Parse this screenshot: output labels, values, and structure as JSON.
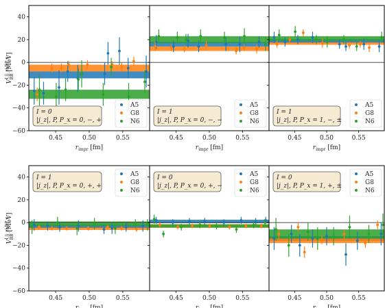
{
  "figure": {
    "ylabel_rows": [
      "V_BB^{I,|j_z|,P,P_x} [MeV]",
      "V_BB^{I,|j_z|,P,P_x} [MeV]"
    ],
    "xlabel": "r_impr [fm]"
  },
  "legend_entries": [
    {
      "name": "A5",
      "color": "#1f77b4"
    },
    {
      "name": "G8",
      "color": "#ff7f0e"
    },
    {
      "name": "N6",
      "color": "#2ca02c"
    }
  ],
  "chart_data": [
    {
      "type": "scatter",
      "row": 0,
      "col": 0,
      "box_lines": [
        "I = 0",
        "|j_z|, P, P_x = 0, −, +"
      ],
      "xlim": [
        0.41,
        0.59
      ],
      "ylim": [
        -60,
        50
      ],
      "xticks": [
        "0.45",
        "0.50",
        "0.55"
      ],
      "yticks": [
        "−60",
        "−40",
        "−20",
        "0",
        "20",
        "40"
      ],
      "bands": [
        {
          "series": "G8",
          "y": -5,
          "half": 3
        },
        {
          "series": "A5",
          "y": -11,
          "half": 3
        },
        {
          "series": "N6",
          "y": -28,
          "half": 4
        }
      ],
      "series": [
        {
          "name": "A5",
          "x": [
            0.418,
            0.432,
            0.455,
            0.468,
            0.483,
            0.523,
            0.528,
            0.545,
            0.558,
            0.585
          ],
          "y": [
            -25,
            -27,
            -22,
            -8,
            -14,
            -10,
            8,
            10,
            -5,
            -8
          ],
          "err": [
            12,
            10,
            15,
            9,
            12,
            10,
            10,
            12,
            9,
            14
          ]
        },
        {
          "name": "G8",
          "x": [
            0.422,
            0.444,
            0.458,
            0.469,
            0.497,
            0.534,
            0.548,
            0.566
          ],
          "y": [
            -28,
            -5,
            -5,
            -2,
            -2,
            -2,
            -4,
            1
          ],
          "err": [
            6,
            4,
            4,
            3,
            4,
            3,
            4,
            4
          ]
        },
        {
          "name": "N6",
          "x": [
            0.425,
            0.45,
            0.464,
            0.483,
            0.488,
            0.52,
            0.532,
            0.558,
            0.582
          ],
          "y": [
            -24,
            -30,
            -24,
            -15,
            -10,
            -28,
            -4,
            -30,
            -17
          ],
          "err": [
            14,
            12,
            10,
            10,
            12,
            10,
            8,
            12,
            10
          ]
        }
      ]
    },
    {
      "type": "scatter",
      "row": 0,
      "col": 1,
      "box_lines": [
        "I = 1",
        "|j_z|, P, P_x = 0, −, −"
      ],
      "xlim": [
        0.41,
        0.59
      ],
      "ylim": [
        -60,
        50
      ],
      "xticks": [
        "0.45",
        "0.50",
        "0.55"
      ],
      "yticks": [
        "−60",
        "−40",
        "−20",
        "0",
        "20",
        "40"
      ],
      "bands": [
        {
          "series": "G8",
          "y": 12,
          "half": 2
        },
        {
          "series": "A5",
          "y": 16,
          "half": 2
        },
        {
          "series": "N6",
          "y": 20,
          "half": 3
        }
      ],
      "series": [
        {
          "name": "A5",
          "x": [
            0.42,
            0.446,
            0.468,
            0.484,
            0.525,
            0.546,
            0.575
          ],
          "y": [
            18,
            14,
            19,
            14,
            16,
            16,
            18
          ],
          "err": [
            6,
            5,
            6,
            5,
            6,
            7,
            5
          ]
        },
        {
          "name": "G8",
          "x": [
            0.418,
            0.442,
            0.462,
            0.495,
            0.54,
            0.552,
            0.571
          ],
          "y": [
            14,
            13,
            12,
            15,
            10,
            13,
            12
          ],
          "err": [
            4,
            3,
            3,
            4,
            3,
            3,
            4
          ]
        },
        {
          "name": "N6",
          "x": [
            0.423,
            0.451,
            0.464,
            0.486,
            0.522,
            0.552,
            0.584
          ],
          "y": [
            23,
            22,
            20,
            23,
            22,
            23,
            16
          ],
          "err": [
            6,
            5,
            5,
            6,
            5,
            7,
            6
          ]
        }
      ]
    },
    {
      "type": "scatter",
      "row": 0,
      "col": 2,
      "box_lines": [
        "I = 1",
        "|j_z|, P, P_x = 1, −, ±"
      ],
      "xlim": [
        0.41,
        0.59
      ],
      "ylim": [
        -60,
        50
      ],
      "xticks": [
        "0.45",
        "0.50",
        "0.55"
      ],
      "yticks": [
        "−60",
        "−40",
        "−20",
        "0",
        "20",
        "40"
      ],
      "bands": [
        {
          "series": "G8",
          "y": 17,
          "half": 1.5
        },
        {
          "series": "A5",
          "y": 19,
          "half": 1.5
        },
        {
          "series": "N6",
          "y": 21,
          "half": 2
        }
      ],
      "series": [
        {
          "name": "A5",
          "x": [
            0.418,
            0.435,
            0.455,
            0.478,
            0.52,
            0.53,
            0.558,
            0.582
          ],
          "y": [
            22,
            18,
            20,
            22,
            16,
            14,
            16,
            14
          ],
          "err": [
            5,
            4,
            4,
            5,
            4,
            4,
            5,
            5
          ]
        },
        {
          "name": "G8",
          "x": [
            0.422,
            0.442,
            0.463,
            0.493,
            0.535,
            0.552,
            0.566
          ],
          "y": [
            16,
            20,
            26,
            17,
            15,
            16,
            13
          ],
          "err": [
            3,
            3,
            3,
            4,
            3,
            3,
            4
          ]
        },
        {
          "name": "N6",
          "x": [
            0.425,
            0.45,
            0.483,
            0.5,
            0.526,
            0.546,
            0.585
          ],
          "y": [
            24,
            27,
            20,
            18,
            20,
            14,
            22
          ],
          "err": [
            5,
            5,
            4,
            5,
            4,
            4,
            5
          ]
        }
      ]
    },
    {
      "type": "scatter",
      "row": 1,
      "col": 0,
      "box_lines": [
        "I = 1",
        "|j_z|, P, P_x = 0, +, +"
      ],
      "xlim": [
        0.41,
        0.59
      ],
      "ylim": [
        -60,
        50
      ],
      "xticks": [
        "0.45",
        "0.50",
        "0.55"
      ],
      "yticks": [
        "−60",
        "−40",
        "−20",
        "0",
        "20",
        "40"
      ],
      "bands": [
        {
          "series": "G8",
          "y": -5,
          "half": 1.5
        },
        {
          "series": "A5",
          "y": -3,
          "half": 1.5
        },
        {
          "series": "N6",
          "y": -1,
          "half": 2
        }
      ],
      "series": [
        {
          "name": "A5",
          "x": [
            0.418,
            0.438,
            0.456,
            0.484,
            0.522,
            0.534,
            0.555,
            0.58
          ],
          "y": [
            -2,
            -3,
            -4,
            -3,
            -6,
            -5,
            -4,
            -3
          ],
          "err": [
            5,
            4,
            4,
            5,
            4,
            5,
            4,
            5
          ]
        },
        {
          "name": "G8",
          "x": [
            0.425,
            0.444,
            0.466,
            0.498,
            0.527,
            0.548,
            0.57
          ],
          "y": [
            -4,
            -5,
            -5,
            -5,
            -4,
            -5,
            -6
          ],
          "err": [
            2,
            2,
            2,
            2,
            2,
            2,
            2
          ]
        },
        {
          "name": "N6",
          "x": [
            0.414,
            0.452,
            0.481,
            0.507,
            0.538,
            0.568,
            0.586
          ],
          "y": [
            -4,
            0,
            -5,
            -1,
            -5,
            -1,
            -2
          ],
          "err": [
            6,
            5,
            6,
            5,
            5,
            4,
            5
          ]
        }
      ]
    },
    {
      "type": "scatter",
      "row": 1,
      "col": 1,
      "box_lines": [
        "I = 0",
        "|j_z|, P, P_x = 0, +, −"
      ],
      "xlim": [
        0.41,
        0.59
      ],
      "ylim": [
        -60,
        50
      ],
      "xticks": [
        "0.45",
        "0.50",
        "0.55"
      ],
      "yticks": [
        "−60",
        "−40",
        "−20",
        "0",
        "20",
        "40"
      ],
      "bands": [
        {
          "series": "A5",
          "y": 1,
          "half": 1.5
        },
        {
          "series": "G8",
          "y": -3,
          "half": 1.5
        },
        {
          "series": "N6",
          "y": -3,
          "half": 1.5
        }
      ],
      "series": [
        {
          "name": "A5",
          "x": [
            0.42,
            0.445,
            0.47,
            0.493,
            0.522,
            0.548,
            0.57,
            0.585
          ],
          "y": [
            2,
            0,
            1,
            1,
            0,
            2,
            1,
            2
          ],
          "err": [
            3,
            3,
            3,
            3,
            3,
            3,
            3,
            3
          ]
        },
        {
          "name": "G8",
          "x": [
            0.425,
            0.452,
            0.474,
            0.5,
            0.53,
            0.555,
            0.578
          ],
          "y": [
            -2,
            -4,
            -3,
            -3,
            -4,
            -3,
            -3
          ],
          "err": [
            2,
            2,
            2,
            2,
            2,
            2,
            2
          ]
        },
        {
          "name": "N6",
          "x": [
            0.416,
            0.43,
            0.457,
            0.485,
            0.51,
            0.54,
            0.566,
            0.583
          ],
          "y": [
            3,
            -10,
            -4,
            -2,
            -3,
            -6,
            -2,
            0
          ],
          "err": [
            4,
            3,
            3,
            3,
            3,
            3,
            3,
            3
          ]
        }
      ]
    },
    {
      "type": "scatter",
      "row": 1,
      "col": 2,
      "box_lines": [
        "I = 0",
        "|j_z|, P, P_x = 1, +, ±"
      ],
      "xlim": [
        0.41,
        0.59
      ],
      "ylim": [
        -60,
        50
      ],
      "xticks": [
        "0.45",
        "0.50",
        "0.55"
      ],
      "yticks": [
        "−60",
        "−40",
        "−20",
        "0",
        "20",
        "40"
      ],
      "bands": [
        {
          "series": "A5",
          "y": -14,
          "half": 2
        },
        {
          "series": "G8",
          "y": -16,
          "half": 2
        },
        {
          "series": "N6",
          "y": -10,
          "half": 4
        }
      ],
      "series": [
        {
          "name": "A5",
          "x": [
            0.418,
            0.445,
            0.458,
            0.478,
            0.5,
            0.53,
            0.548,
            0.585
          ],
          "y": [
            -14,
            -10,
            -20,
            -14,
            -12,
            -28,
            -16,
            -10
          ],
          "err": [
            10,
            8,
            10,
            8,
            8,
            10,
            8,
            10
          ]
        },
        {
          "name": "G8",
          "x": [
            0.425,
            0.455,
            0.465,
            0.492,
            0.527,
            0.56,
            0.579
          ],
          "y": [
            -10,
            -4,
            -26,
            -15,
            -10,
            -18,
            -2
          ],
          "err": [
            4,
            4,
            5,
            4,
            4,
            4,
            4
          ]
        },
        {
          "name": "N6",
          "x": [
            0.42,
            0.44,
            0.47,
            0.485,
            0.51,
            0.535,
            0.565,
            0.587
          ],
          "y": [
            -6,
            -20,
            -8,
            -14,
            -12,
            -4,
            -10,
            -2
          ],
          "err": [
            10,
            10,
            8,
            10,
            8,
            10,
            8,
            10
          ]
        }
      ]
    }
  ]
}
